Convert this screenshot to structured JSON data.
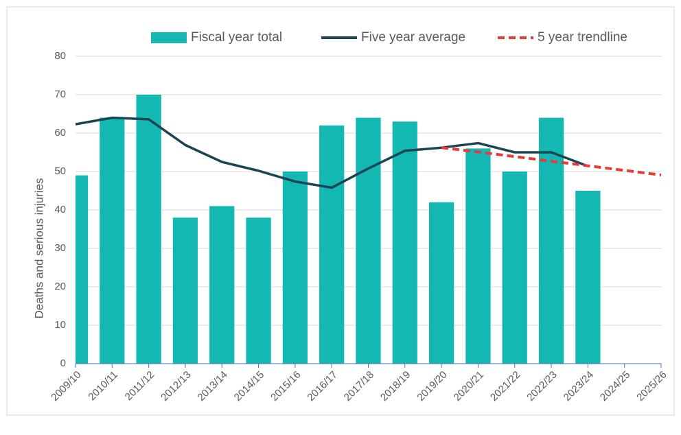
{
  "chart_data": {
    "type": "bar",
    "y_label": "Deaths and serious injuries",
    "categories": [
      "2009/10",
      "2010/11",
      "2011/12",
      "2012/13",
      "2013/14",
      "2014/15",
      "2015/16",
      "2016/17",
      "2017/18",
      "2018/19",
      "2019/20",
      "2020/21",
      "2021/22",
      "2022/23",
      "2023/24",
      "2024/25",
      "2025/26"
    ],
    "series": [
      {
        "name": "Fiscal year total",
        "type": "bar",
        "color": "#13b8b2",
        "values": [
          49,
          64,
          70,
          38,
          41,
          38,
          50,
          62,
          64,
          63,
          42,
          56,
          50,
          64,
          45,
          null,
          null
        ]
      },
      {
        "name": "Five year average",
        "type": "line",
        "color": "#1b4552",
        "values": [
          62.3,
          64,
          63.6,
          56.9,
          52.5,
          50.2,
          47.4,
          45.8,
          50.8,
          55.4,
          56.2,
          57.4,
          55,
          55,
          51.4,
          null,
          null
        ]
      },
      {
        "name": "5 year trendline",
        "type": "line",
        "dashed": true,
        "color": "#e63c3c",
        "values": [
          null,
          null,
          null,
          null,
          null,
          null,
          null,
          null,
          null,
          null,
          56.2,
          55.1,
          53.9,
          52.7,
          51.5,
          50.3,
          49.1
        ]
      }
    ],
    "ylim": [
      0,
      80
    ],
    "yticks": [
      0,
      10,
      20,
      30,
      40,
      50,
      60,
      70,
      80
    ],
    "grid": true,
    "legend": "top"
  }
}
